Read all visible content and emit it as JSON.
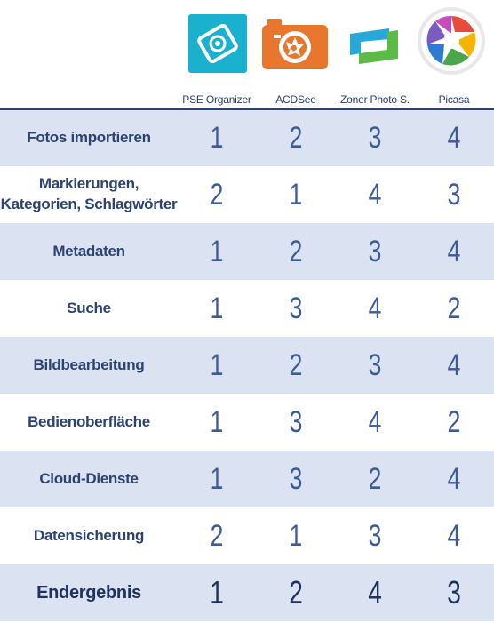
{
  "apps": [
    {
      "name": "PSE Organizer",
      "icon": "pse-organizer-logo-icon",
      "color": "#1bb0ce"
    },
    {
      "name": "ACDSee",
      "icon": "acdsee-camera-logo-icon",
      "color": "#e8762d"
    },
    {
      "name": "Zoner Photo S.",
      "icon": "zoner-photo-studio-logo-icon",
      "color": "#4fb848"
    },
    {
      "name": "Picasa",
      "icon": "picasa-logo-icon",
      "color": "#7d5bbf"
    }
  ],
  "rows": [
    {
      "label": "Fotos importieren",
      "ranks": [
        "1",
        "2",
        "3",
        "4"
      ]
    },
    {
      "label": "Markierungen, Kategorien, Schlagwörter",
      "ranks": [
        "2",
        "1",
        "4",
        "3"
      ]
    },
    {
      "label": "Metadaten",
      "ranks": [
        "1",
        "2",
        "3",
        "4"
      ]
    },
    {
      "label": "Suche",
      "ranks": [
        "1",
        "3",
        "4",
        "2"
      ]
    },
    {
      "label": "Bildbearbeitung",
      "ranks": [
        "1",
        "2",
        "3",
        "4"
      ]
    },
    {
      "label": "Bedienoberfläche",
      "ranks": [
        "1",
        "3",
        "4",
        "2"
      ]
    },
    {
      "label": "Cloud-Dienste",
      "ranks": [
        "1",
        "3",
        "2",
        "4"
      ]
    },
    {
      "label": "Datensicherung",
      "ranks": [
        "2",
        "1",
        "3",
        "4"
      ]
    },
    {
      "label": "Endergebnis",
      "ranks": [
        "1",
        "2",
        "4",
        "3"
      ]
    }
  ],
  "colors": {
    "header_rule": "#2b4272",
    "shade": "#dbe3f3",
    "text": "#2b4272"
  }
}
